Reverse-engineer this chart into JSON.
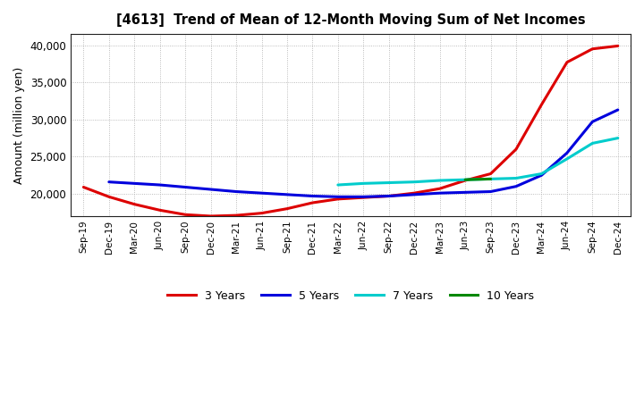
{
  "title": "[4613]  Trend of Mean of 12-Month Moving Sum of Net Incomes",
  "ylabel": "Amount (million yen)",
  "ylim": [
    17000,
    41500
  ],
  "yticks": [
    20000,
    25000,
    30000,
    35000,
    40000
  ],
  "ytick_labels": [
    "20,000",
    "25,000",
    "30,000",
    "35,000",
    "40,000"
  ],
  "background_color": "#ffffff",
  "grid_color": "#aaaaaa",
  "series": {
    "3 Years": {
      "color": "#dd0000",
      "x": [
        0,
        1,
        2,
        3,
        4,
        5,
        6,
        7,
        8,
        9,
        10,
        11,
        12,
        13,
        14,
        15,
        16,
        17,
        18,
        19,
        20,
        21
      ],
      "y": [
        20900,
        19600,
        18600,
        17800,
        17200,
        17000,
        17100,
        17400,
        18000,
        18800,
        19300,
        19500,
        19700,
        20100,
        20700,
        21800,
        22700,
        26000,
        32000,
        37700,
        39500,
        39900
      ]
    },
    "5 Years": {
      "color": "#0000dd",
      "x": [
        1,
        2,
        3,
        4,
        5,
        6,
        7,
        8,
        9,
        10,
        11,
        12,
        13,
        14,
        15,
        16,
        17,
        18,
        19,
        20,
        21
      ],
      "y": [
        21600,
        21400,
        21200,
        20900,
        20600,
        20300,
        20100,
        19900,
        19700,
        19600,
        19600,
        19700,
        19900,
        20100,
        20200,
        20300,
        21000,
        22500,
        25500,
        29700,
        31300
      ]
    },
    "7 Years": {
      "color": "#00cccc",
      "x": [
        10,
        11,
        12,
        13,
        14,
        15,
        16,
        17,
        18,
        19,
        20,
        21
      ],
      "y": [
        21200,
        21400,
        21500,
        21600,
        21800,
        21900,
        22000,
        22100,
        22700,
        24700,
        26800,
        27500
      ]
    },
    "10 Years": {
      "color": "#008800",
      "x": [
        15,
        16
      ],
      "y": [
        21900,
        22000
      ]
    }
  },
  "xtick_labels": [
    "Sep-19",
    "Dec-19",
    "Mar-20",
    "Jun-20",
    "Sep-20",
    "Dec-20",
    "Mar-21",
    "Jun-21",
    "Sep-21",
    "Dec-21",
    "Mar-22",
    "Jun-22",
    "Sep-22",
    "Dec-22",
    "Mar-23",
    "Jun-23",
    "Sep-23",
    "Dec-23",
    "Mar-24",
    "Jun-24",
    "Sep-24",
    "Dec-24"
  ],
  "legend_labels": [
    "3 Years",
    "5 Years",
    "7 Years",
    "10 Years"
  ],
  "legend_colors": [
    "#dd0000",
    "#0000dd",
    "#00cccc",
    "#008800"
  ]
}
